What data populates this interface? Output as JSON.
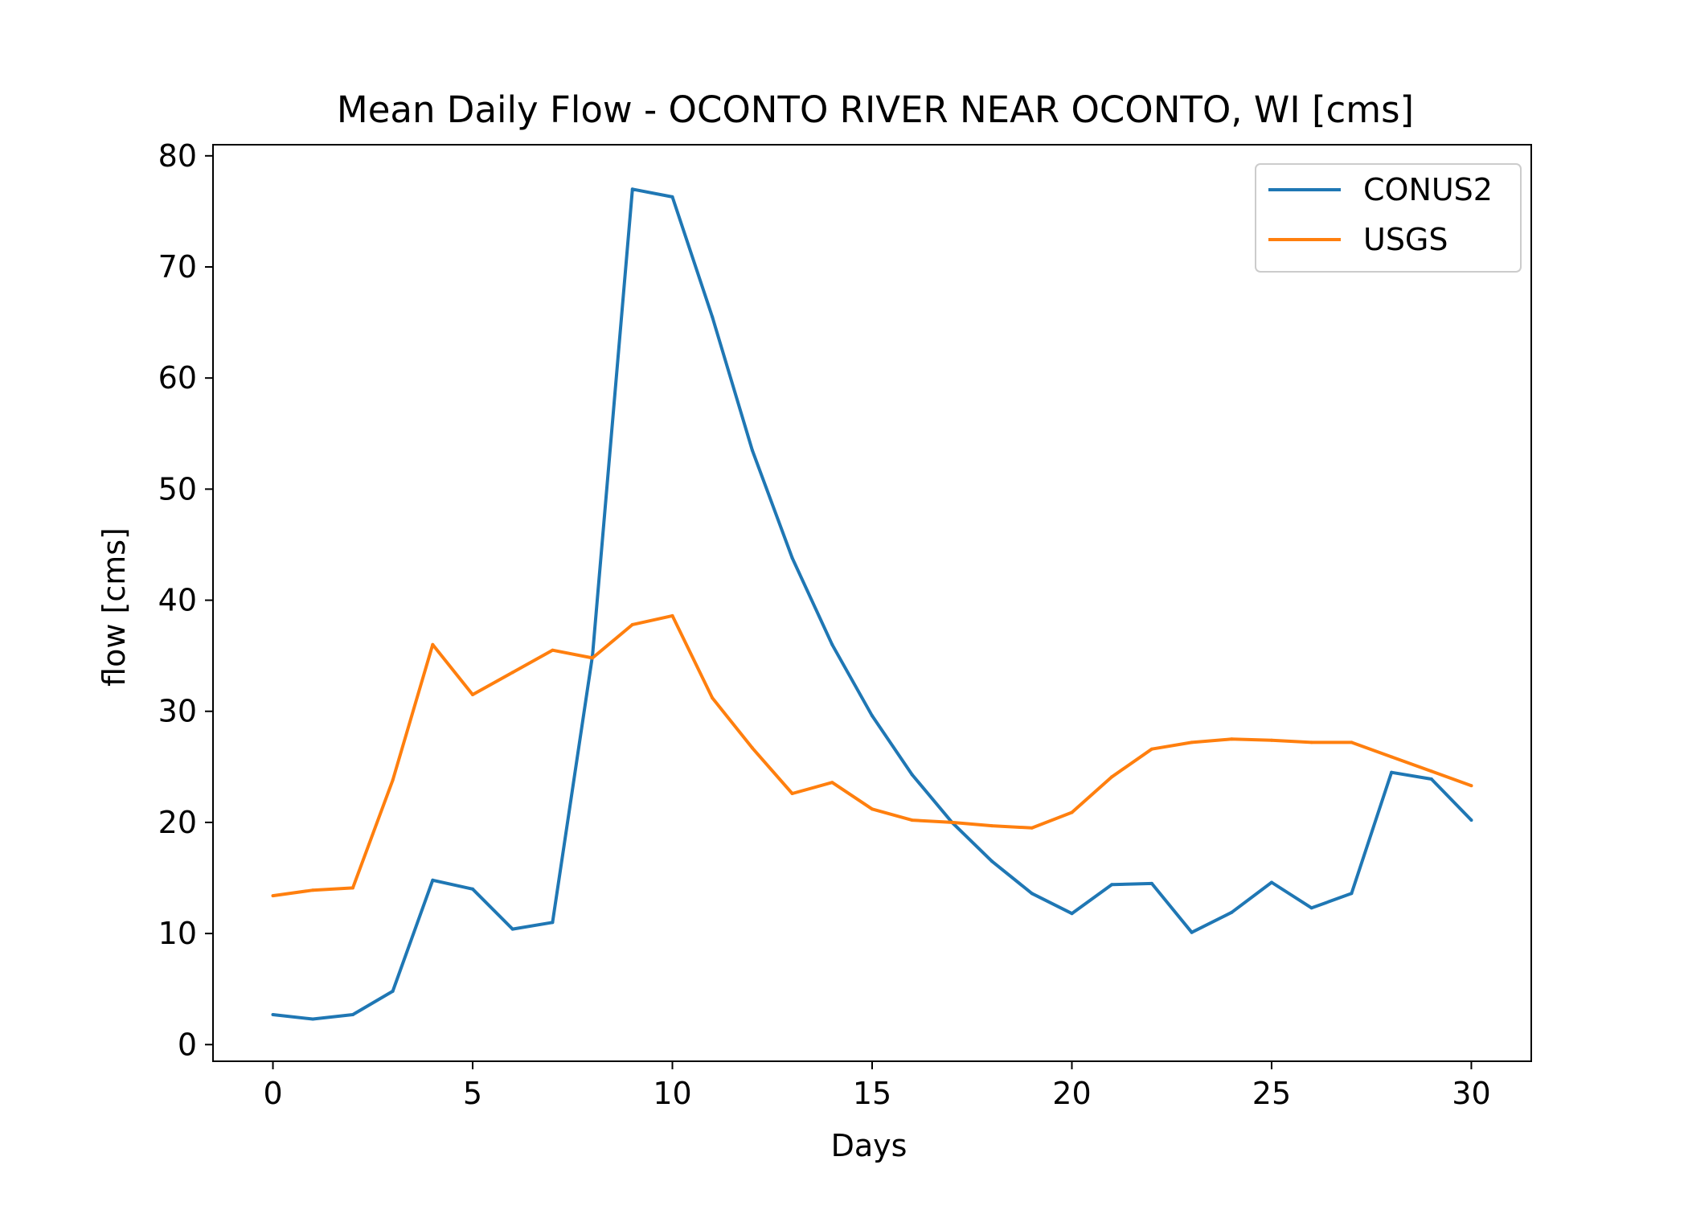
{
  "chart_data": {
    "type": "line",
    "title": "Mean Daily Flow - OCONTO RIVER NEAR OCONTO, WI [cms]",
    "xlabel": "Days",
    "ylabel": "flow [cms]",
    "xlim": [
      -1.5,
      31.5
    ],
    "ylim": [
      -1.5,
      81
    ],
    "xticks": [
      0,
      5,
      10,
      15,
      20,
      25,
      30
    ],
    "yticks": [
      0,
      10,
      20,
      30,
      40,
      50,
      60,
      70,
      80
    ],
    "grid": false,
    "legend_position": "top-right",
    "x": [
      0,
      1,
      2,
      3,
      4,
      5,
      6,
      7,
      8,
      9,
      10,
      11,
      12,
      13,
      14,
      15,
      16,
      17,
      18,
      19,
      20,
      21,
      22,
      23,
      24,
      25,
      26,
      27,
      28,
      29,
      30
    ],
    "series": [
      {
        "name": "CONUS2",
        "color": "#1f77b4",
        "values": [
          2.7,
          2.3,
          2.7,
          4.8,
          14.8,
          14.0,
          10.4,
          11.0,
          35.0,
          77.0,
          76.3,
          65.5,
          53.5,
          43.8,
          36.0,
          29.6,
          24.3,
          20.0,
          16.5,
          13.6,
          11.8,
          14.4,
          14.5,
          10.1,
          11.9,
          14.6,
          12.3,
          13.6,
          24.5,
          23.9,
          20.2
        ]
      },
      {
        "name": "USGS",
        "color": "#ff7f0e",
        "values": [
          13.4,
          13.9,
          14.1,
          23.8,
          36.0,
          31.5,
          33.5,
          35.5,
          34.8,
          37.8,
          38.6,
          31.2,
          26.7,
          22.6,
          23.6,
          21.2,
          20.2,
          20.0,
          19.7,
          19.5,
          20.9,
          24.1,
          26.6,
          27.2,
          27.5,
          27.4,
          27.2,
          27.2,
          25.9,
          24.6,
          23.3
        ]
      }
    ]
  }
}
